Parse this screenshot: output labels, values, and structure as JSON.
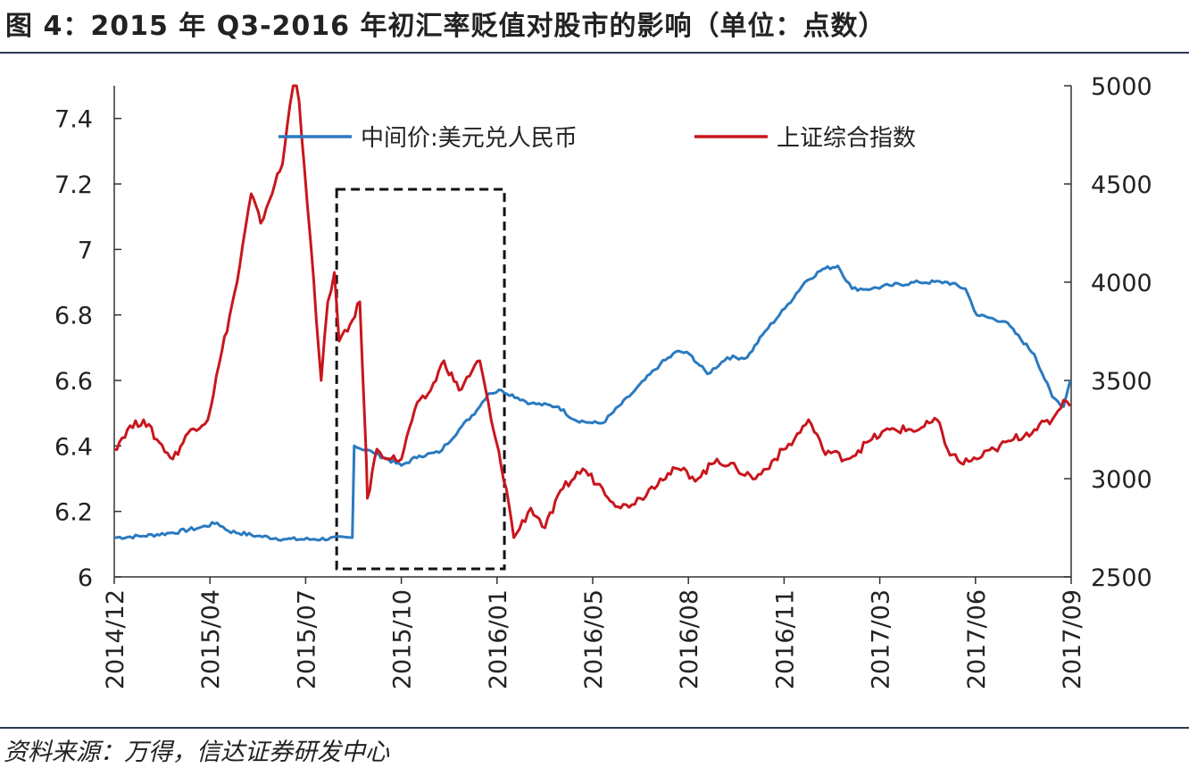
{
  "header": {
    "title": "图 4：2015 年 Q3-2016 年初汇率贬值对股市的影响（单位：点数）"
  },
  "footer": {
    "source": "资料来源：万得，信达证券研发中心"
  },
  "colors": {
    "usdcny": "#2a7ac0",
    "sse": "#c8161d",
    "axis": "#333333",
    "rule": "#2b3a55"
  },
  "chart_data": {
    "type": "line",
    "title": "",
    "xlabel": "",
    "ylabel": "",
    "x_ticks": [
      "2014/12",
      "2015/04",
      "2015/07",
      "2015/10",
      "2016/01",
      "2016/05",
      "2016/08",
      "2016/11",
      "2017/03",
      "2017/06",
      "2017/09"
    ],
    "y_left": {
      "ylim": [
        6.0,
        7.5
      ],
      "ticks": [
        "6",
        "6.2",
        "6.4",
        "6.6",
        "6.8",
        "7",
        "7.2",
        "7.4"
      ]
    },
    "y_right": {
      "ylim": [
        2500,
        5000
      ],
      "ticks": [
        "2500",
        "3000",
        "3500",
        "4000",
        "4500",
        "5000"
      ]
    },
    "legend": {
      "placement": "top"
    },
    "grid": false,
    "highlight_box": {
      "x_from": "2015/08",
      "x_to": "2016/01",
      "style": "dashed"
    },
    "series": [
      {
        "name": "中间价:美元兑人民币",
        "axis": "left",
        "color": "#2a7ac0",
        "points": [
          [
            "2014-12-01",
            6.12
          ],
          [
            "2015-01-01",
            6.125
          ],
          [
            "2015-02-01",
            6.135
          ],
          [
            "2015-03-01",
            6.15
          ],
          [
            "2015-03-20",
            6.165
          ],
          [
            "2015-04-01",
            6.14
          ],
          [
            "2015-05-01",
            6.125
          ],
          [
            "2015-06-01",
            6.115
          ],
          [
            "2015-07-01",
            6.115
          ],
          [
            "2015-08-10",
            6.12
          ],
          [
            "2015-08-12",
            6.4
          ],
          [
            "2015-09-01",
            6.38
          ],
          [
            "2015-10-01",
            6.34
          ],
          [
            "2015-10-20",
            6.37
          ],
          [
            "2015-11-10",
            6.38
          ],
          [
            "2015-12-01",
            6.45
          ],
          [
            "2015-12-20",
            6.51
          ],
          [
            "2016-01-01",
            6.56
          ],
          [
            "2016-01-15",
            6.57
          ],
          [
            "2016-02-15",
            6.53
          ],
          [
            "2016-03-15",
            6.52
          ],
          [
            "2016-04-01",
            6.48
          ],
          [
            "2016-04-20",
            6.47
          ],
          [
            "2016-05-01",
            6.47
          ],
          [
            "2016-06-01",
            6.56
          ],
          [
            "2016-07-01",
            6.65
          ],
          [
            "2016-07-20",
            6.69
          ],
          [
            "2016-08-01",
            6.68
          ],
          [
            "2016-08-20",
            6.62
          ],
          [
            "2016-09-10",
            6.67
          ],
          [
            "2016-10-01",
            6.67
          ],
          [
            "2016-10-20",
            6.75
          ],
          [
            "2016-11-10",
            6.82
          ],
          [
            "2016-12-01",
            6.9
          ],
          [
            "2016-12-20",
            6.94
          ],
          [
            "2017-01-05",
            6.95
          ],
          [
            "2017-01-20",
            6.88
          ],
          [
            "2017-02-10",
            6.88
          ],
          [
            "2017-03-01",
            6.89
          ],
          [
            "2017-04-01",
            6.9
          ],
          [
            "2017-05-01",
            6.9
          ],
          [
            "2017-05-20",
            6.88
          ],
          [
            "2017-06-01",
            6.8
          ],
          [
            "2017-07-01",
            6.78
          ],
          [
            "2017-08-01",
            6.68
          ],
          [
            "2017-08-20",
            6.55
          ],
          [
            "2017-09-01",
            6.52
          ],
          [
            "2017-09-08",
            6.6
          ]
        ]
      },
      {
        "name": "上证综合指数",
        "axis": "right",
        "color": "#c8161d",
        "points": [
          [
            "2014-12-01",
            3150
          ],
          [
            "2014-12-15",
            3250
          ],
          [
            "2015-01-01",
            3300
          ],
          [
            "2015-01-15",
            3200
          ],
          [
            "2015-02-01",
            3100
          ],
          [
            "2015-02-20",
            3250
          ],
          [
            "2015-03-10",
            3300
          ],
          [
            "2015-03-25",
            3650
          ],
          [
            "2015-04-10",
            4000
          ],
          [
            "2015-04-25",
            4450
          ],
          [
            "2015-05-05",
            4300
          ],
          [
            "2015-05-20",
            4500
          ],
          [
            "2015-05-28",
            4600
          ],
          [
            "2015-06-05",
            4900
          ],
          [
            "2015-06-12",
            5100
          ],
          [
            "2015-06-20",
            4600
          ],
          [
            "2015-06-27",
            4200
          ],
          [
            "2015-07-03",
            3800
          ],
          [
            "2015-07-08",
            3500
          ],
          [
            "2015-07-15",
            3900
          ],
          [
            "2015-07-22",
            4050
          ],
          [
            "2015-07-27",
            3700
          ],
          [
            "2015-08-05",
            3750
          ],
          [
            "2015-08-18",
            3900
          ],
          [
            "2015-08-24",
            3200
          ],
          [
            "2015-08-26",
            2900
          ],
          [
            "2015-09-05",
            3150
          ],
          [
            "2015-09-20",
            3100
          ],
          [
            "2015-10-01",
            3100
          ],
          [
            "2015-10-15",
            3350
          ],
          [
            "2015-11-01",
            3450
          ],
          [
            "2015-11-15",
            3600
          ],
          [
            "2015-12-01",
            3450
          ],
          [
            "2015-12-15",
            3550
          ],
          [
            "2015-12-23",
            3600
          ],
          [
            "2016-01-04",
            3300
          ],
          [
            "2016-01-20",
            2950
          ],
          [
            "2016-01-28",
            2700
          ],
          [
            "2016-02-15",
            2850
          ],
          [
            "2016-03-01",
            2750
          ],
          [
            "2016-03-20",
            2950
          ],
          [
            "2016-04-10",
            3050
          ],
          [
            "2016-05-01",
            2950
          ],
          [
            "2016-05-20",
            2850
          ],
          [
            "2016-06-10",
            2900
          ],
          [
            "2016-07-01",
            3000
          ],
          [
            "2016-07-20",
            3050
          ],
          [
            "2016-08-10",
            3000
          ],
          [
            "2016-08-30",
            3100
          ],
          [
            "2016-09-20",
            3050
          ],
          [
            "2016-10-10",
            3000
          ],
          [
            "2016-10-30",
            3100
          ],
          [
            "2016-11-20",
            3200
          ],
          [
            "2016-12-05",
            3300
          ],
          [
            "2016-12-20",
            3150
          ],
          [
            "2017-01-15",
            3100
          ],
          [
            "2017-02-10",
            3200
          ],
          [
            "2017-03-01",
            3250
          ],
          [
            "2017-04-01",
            3250
          ],
          [
            "2017-04-20",
            3300
          ],
          [
            "2017-05-01",
            3150
          ],
          [
            "2017-05-15",
            3080
          ],
          [
            "2017-06-01",
            3100
          ],
          [
            "2017-06-20",
            3150
          ],
          [
            "2017-07-10",
            3200
          ],
          [
            "2017-08-01",
            3250
          ],
          [
            "2017-08-20",
            3300
          ],
          [
            "2017-09-01",
            3400
          ],
          [
            "2017-09-08",
            3370
          ]
        ]
      }
    ]
  }
}
